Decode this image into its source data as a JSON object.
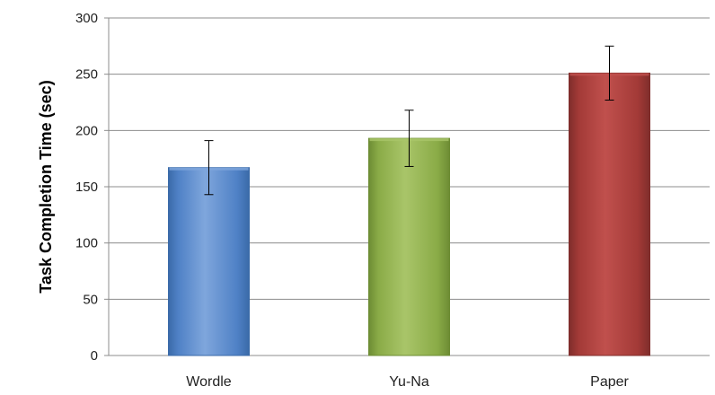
{
  "chart_data": {
    "type": "bar",
    "title": "",
    "xlabel": "",
    "ylabel": "Task Completion  Time (sec)",
    "categories": [
      "Wordle",
      "Yu-Na",
      "Paper"
    ],
    "values": [
      167,
      193,
      251
    ],
    "error": [
      24,
      25,
      24
    ],
    "ylim": [
      0,
      300
    ],
    "yticks": [
      0,
      50,
      100,
      150,
      200,
      250,
      300
    ],
    "ytick_labels": [
      "0",
      "50",
      "100",
      "150",
      "200",
      "250",
      "300"
    ],
    "grid": true,
    "legend": "none",
    "colors": {
      "Wordle": {
        "light": "#7fa6dc",
        "mid": "#4f81c6",
        "dark": "#3a6aa8"
      },
      "Yu-Na": {
        "light": "#a9c569",
        "mid": "#8aab47",
        "dark": "#6d8c34"
      },
      "Paper": {
        "light": "#c0504d",
        "mid": "#a33a37",
        "dark": "#7f2d2b"
      }
    }
  }
}
